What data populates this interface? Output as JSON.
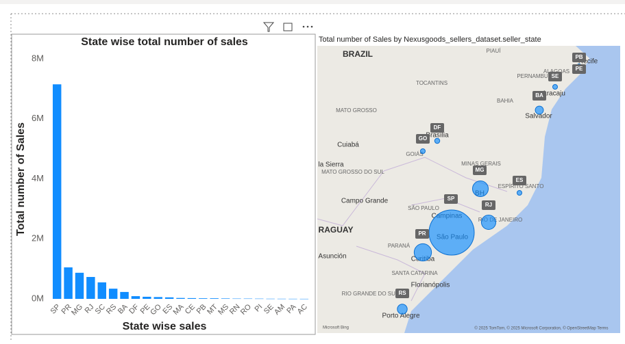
{
  "chart_data": [
    {
      "type": "bar",
      "title": "State wise total number of sales",
      "x_label": "State wise sales",
      "y_label": "Total number of Sales",
      "color": "#118dff",
      "categories": [
        "SP",
        "PR",
        "MG",
        "RJ",
        "SC",
        "RS",
        "BA",
        "DF",
        "PE",
        "GO",
        "ES",
        "MA",
        "CE",
        "PB",
        "MT",
        "MS",
        "RN",
        "RO",
        "PI",
        "SE",
        "AM",
        "PA",
        "AC"
      ],
      "values": [
        7150000,
        1050000,
        870000,
        730000,
        550000,
        340000,
        230000,
        90000,
        70000,
        60000,
        50000,
        30000,
        25000,
        20000,
        20000,
        15000,
        10000,
        10000,
        8000,
        5000,
        4000,
        3000,
        2000
      ],
      "ylim": [
        0,
        8000000
      ],
      "yticks": [
        {
          "value": 0,
          "label": "0M"
        },
        {
          "value": 2000000,
          "label": "2M"
        },
        {
          "value": 4000000,
          "label": "4M"
        },
        {
          "value": 6000000,
          "label": "6M"
        },
        {
          "value": 8000000,
          "label": "8M"
        }
      ],
      "grid": false
    },
    {
      "type": "map",
      "title": "Total number of Sales by Nexusgoods_sellers_dataset.seller_state",
      "place_labels": [
        "BRAZIL",
        "PIAUÍ",
        "PERNAMBUCO",
        "Recife",
        "ALAGOAS",
        "Aracaju",
        "TOCANTINS",
        "BAHIA",
        "MATO GROSSO",
        "Salvador",
        "Brasília",
        "GOIÁS",
        "Cuiabá",
        "la Sierra",
        "MINAS GERAIS",
        "MATO GROSSO DO SUL",
        "ESPÍRITO SANTO",
        "BH",
        "Campo Grande",
        "SÃO PAULO",
        "RIO DE JANEIRO",
        "Campinas",
        "São Paulo",
        "RAGUAY",
        "PARANÁ",
        "Asunción",
        "Curitiba",
        "SANTA CATARINA",
        "Florianópolis",
        "RIO GRANDE DO SUL",
        "Porto Alegre",
        "Microsoft Bing",
        "© 2025 TomTom, © 2025 Microsoft Corporation, © OpenStreetMap  Terms"
      ]
    }
  ]
}
